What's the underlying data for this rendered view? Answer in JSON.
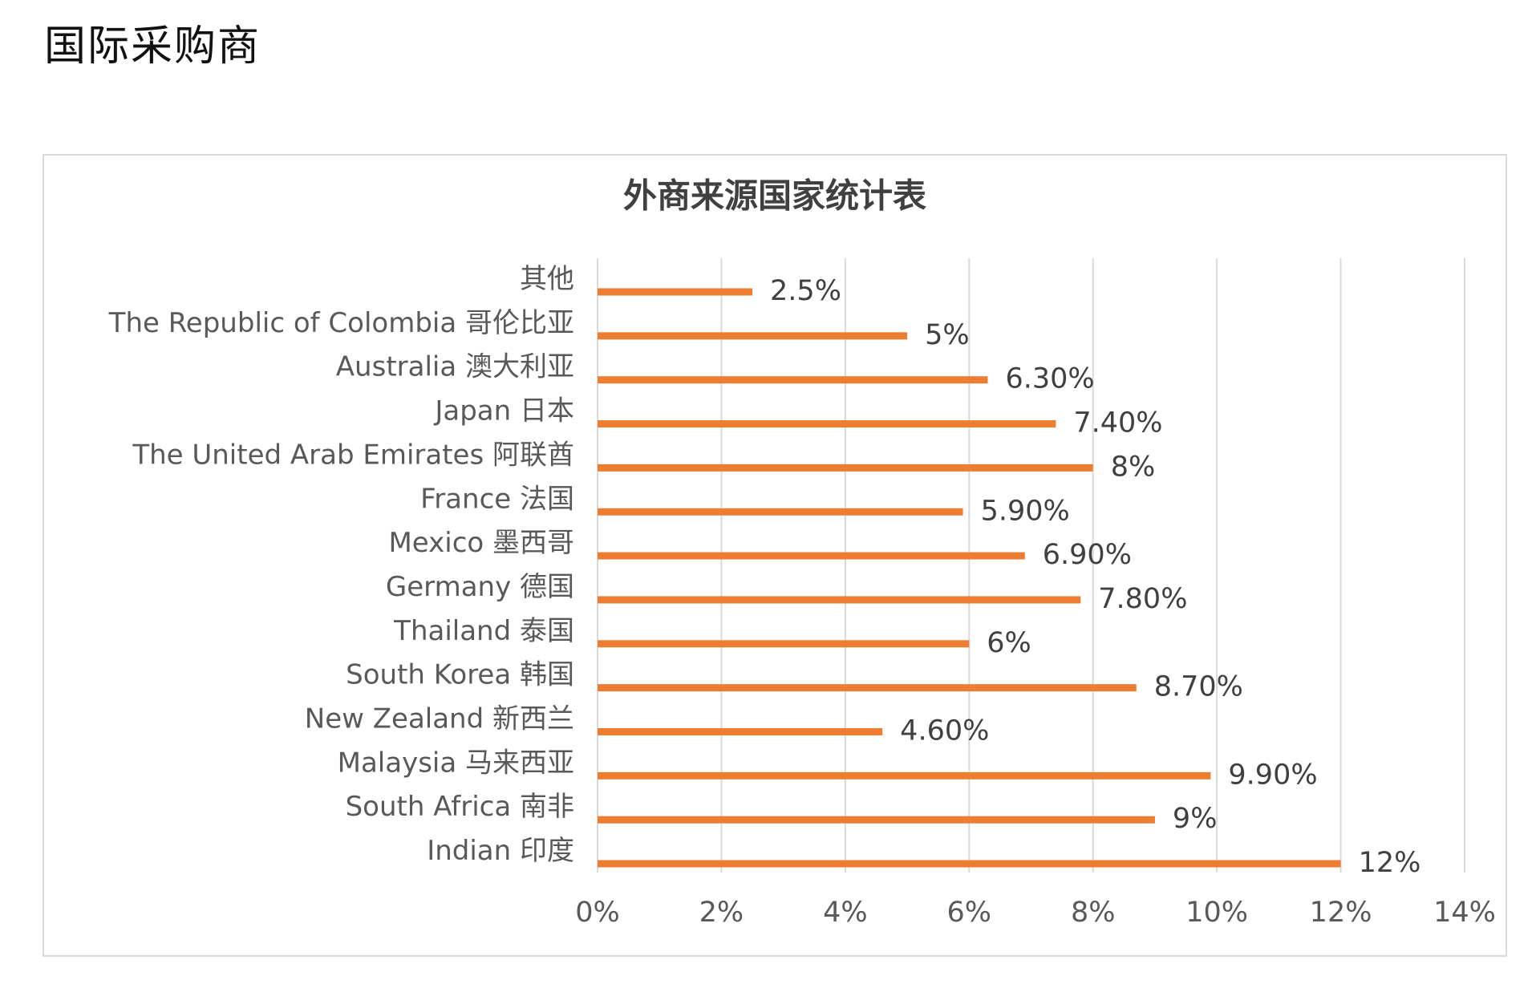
{
  "page": {
    "heading": "国际采购商"
  },
  "chart_data": {
    "type": "bar",
    "orientation": "horizontal",
    "title": "外商来源国家统计表",
    "categories": [
      "其他",
      "The Republic of Colombia 哥伦比亚",
      "Australia 澳大利亚",
      "Japan 日本",
      "The United Arab Emirates 阿联酋",
      "France 法国",
      "Mexico 墨西哥",
      "Germany 德国",
      "Thailand 泰国",
      "South Korea 韩国",
      "New Zealand 新西兰",
      "Malaysia 马来西亚",
      "South Africa 南非",
      "Indian 印度"
    ],
    "values": [
      2.5,
      5,
      6.3,
      7.4,
      8,
      5.9,
      6.9,
      7.8,
      6,
      8.7,
      4.6,
      9.9,
      9,
      12
    ],
    "data_labels": [
      "2.5%",
      "5%",
      "6.30%",
      "7.40%",
      "8%",
      "5.90%",
      "6.90%",
      "7.80%",
      "6%",
      "8.70%",
      "4.60%",
      "9.90%",
      "9%",
      "12%"
    ],
    "x_ticks": [
      0,
      2,
      4,
      6,
      8,
      10,
      12,
      14
    ],
    "x_tick_labels": [
      "0%",
      "2%",
      "4%",
      "6%",
      "8%",
      "10%",
      "12%",
      "14%"
    ],
    "xlim": [
      0,
      14
    ],
    "grid": "vertical",
    "legend": "none",
    "bar_color": "#ED7D31",
    "grid_color": "#D9D9D9"
  }
}
